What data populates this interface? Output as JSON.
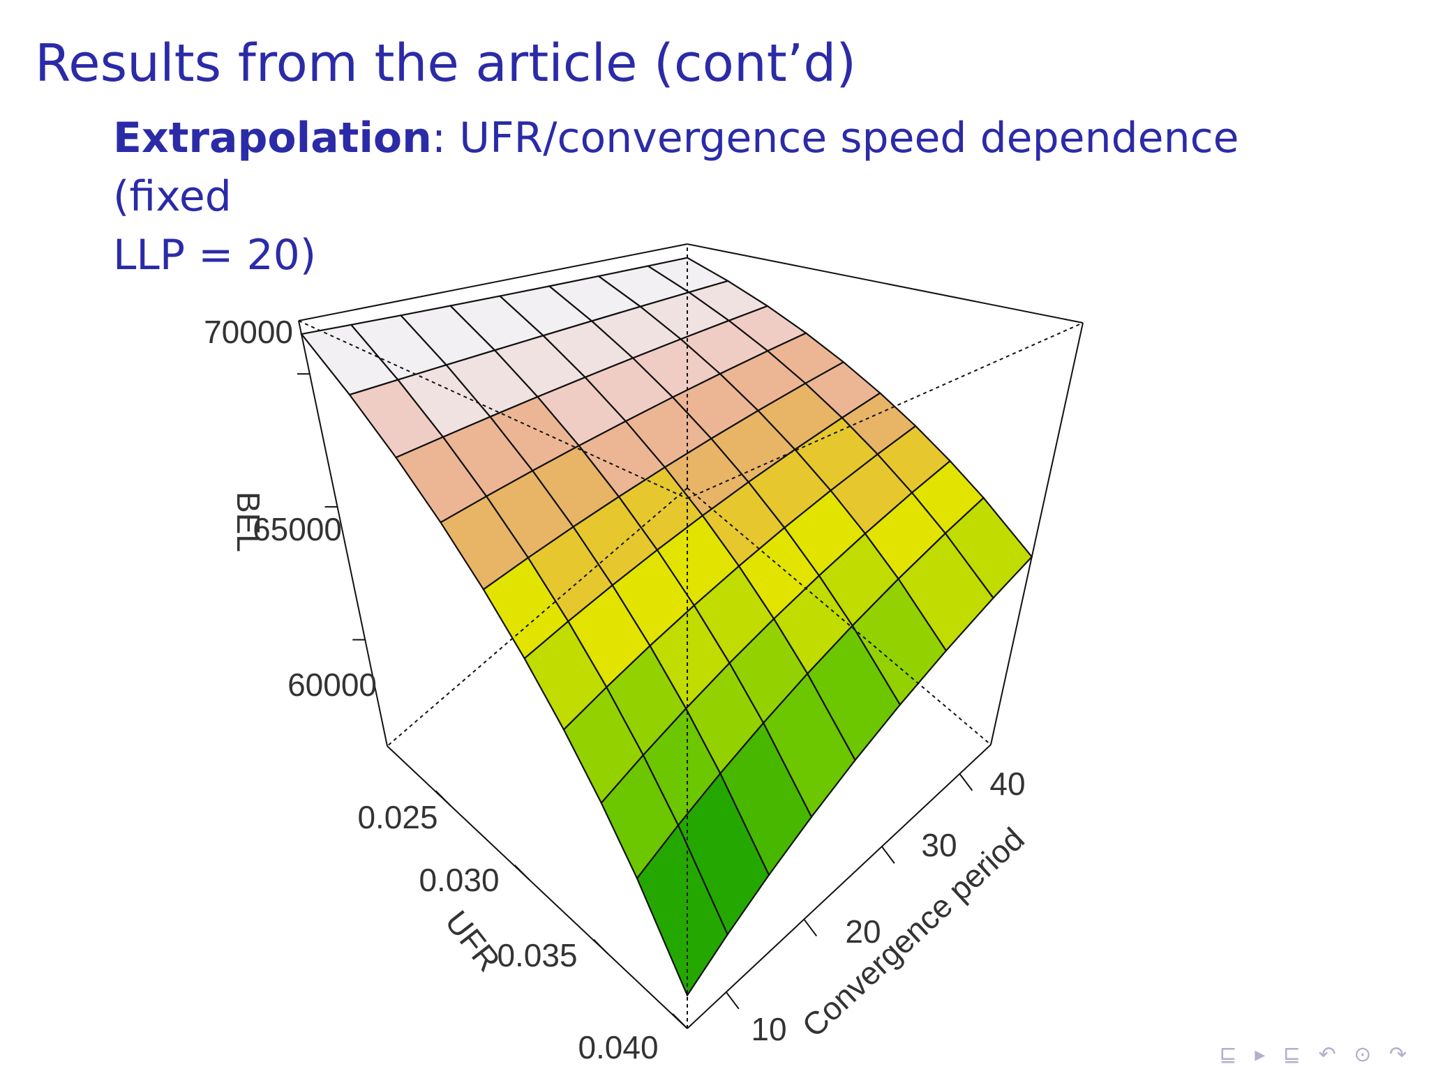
{
  "slide": {
    "title": "Results from the article (cont’d)",
    "subtitle_bold": "Extrapolation",
    "subtitle_rest": ": UFR/convergence speed dependence (fixed",
    "subtitle_line2": "LLP = 20)"
  },
  "nav": {
    "frame_nav": "⊑ ▸",
    "section_nav": "⊑",
    "controls": "↶ ⊙ ↷"
  },
  "chart_data": {
    "type": "surface3d",
    "z_label": "BEL",
    "x_label": "UFR",
    "y_label": "Convergence period",
    "z_ticks": [
      "60000",
      "65000",
      "70000"
    ],
    "x_ticks": [
      "0.025",
      "0.030",
      "0.035",
      "0.040"
    ],
    "y_ticks": [
      "10",
      "20",
      "30",
      "40"
    ],
    "x_range": [
      0.021,
      0.04
    ],
    "y_range": [
      5,
      44
    ],
    "z_range": [
      56000,
      72000
    ],
    "grid_x": [
      0.021,
      0.023,
      0.025,
      0.027,
      0.029,
      0.031,
      0.033,
      0.035,
      0.037,
      0.04
    ],
    "grid_y": [
      5,
      10,
      15,
      20,
      25,
      30,
      35,
      40,
      44
    ],
    "color_bands": [
      "#009a00",
      "#24a800",
      "#48b700",
      "#6cc600",
      "#93d200",
      "#c0dc00",
      "#e2e400",
      "#e6c82e",
      "#e8b466",
      "#ecb694",
      "#f0cdc4",
      "#f1e2e2",
      "#f2f0f2"
    ]
  }
}
